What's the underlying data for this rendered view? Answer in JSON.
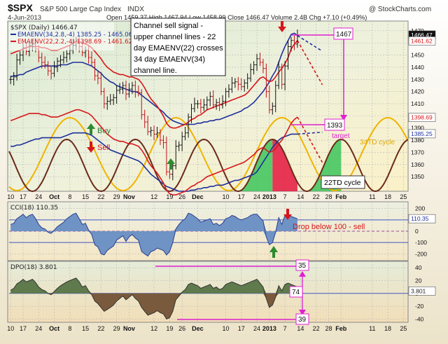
{
  "header": {
    "symbol": "$SPX",
    "name": "S&P 500 Large Cap Index",
    "exchange": "INDX",
    "copyright": "@ StockCharts.com",
    "date": "4-Jun-2013",
    "quote": "Open 1459.37  High 1467.94  Low 1458.99  Close 1466.47  Volume 2.4B  Chg +7.10 (+0.49%)"
  },
  "legend": {
    "price": "$SPX (Daily) 1466.47",
    "ema34": "EMAENV(34,2.8,-4) 1385.25 - 1465.06",
    "ema22": "EMAENV(22,2.2,-4) 1398.69 - 1461.62"
  },
  "annotations": {
    "channel_note": [
      "Channel sell signal -",
      "upper channel lines - 22",
      "day EMAENV(22) crosses",
      "34 day EMAENV(34)",
      "channel line."
    ],
    "buy": "Buy",
    "sell": "Sell",
    "target_1467": "1467",
    "target_1393": "1393",
    "target_label": "target",
    "cycle34": "34TD cycle",
    "cycle22": "22TD cycle",
    "cci_note": "Drop below 100 - sell",
    "dpo_35": "35",
    "dpo_74": "74",
    "dpo_39": "39"
  },
  "cci": {
    "label": "CCI(18) 110.35",
    "last": "110.35",
    "ticks": [
      "200",
      "100",
      "0",
      "-100",
      "-200"
    ]
  },
  "dpo": {
    "label": "DPO(18) 3.801",
    "last": "3.801",
    "ticks": [
      "40",
      "20",
      "0",
      "-20",
      "-40"
    ]
  },
  "x_axis_labels": [
    {
      "label": "10",
      "i": 0
    },
    {
      "label": "17",
      "i": 4
    },
    {
      "label": "24",
      "i": 9
    },
    {
      "label": "Oct",
      "i": 14
    },
    {
      "label": "8",
      "i": 19
    },
    {
      "label": "15",
      "i": 24
    },
    {
      "label": "22",
      "i": 29
    },
    {
      "label": "29",
      "i": 34
    },
    {
      "label": "Nov",
      "i": 38
    },
    {
      "label": "12",
      "i": 46
    },
    {
      "label": "19",
      "i": 51
    },
    {
      "label": "26",
      "i": 55
    },
    {
      "label": "Dec",
      "i": 60
    },
    {
      "label": "10",
      "i": 69
    },
    {
      "label": "17",
      "i": 74
    },
    {
      "label": "24",
      "i": 79
    },
    {
      "label": "2013",
      "i": 83
    },
    {
      "label": "7",
      "i": 88
    },
    {
      "label": "14",
      "i": 93
    },
    {
      "label": "22",
      "i": 98
    },
    {
      "label": "28",
      "i": 102
    },
    {
      "label": "Feb",
      "i": 106
    },
    {
      "label": "11",
      "i": 116
    },
    {
      "label": "18",
      "i": 121
    },
    {
      "label": "25",
      "i": 126
    }
  ],
  "chart_data": {
    "type": "line",
    "price_axis": {
      "ylim": [
        1338,
        1478
      ],
      "ticks": [
        1470,
        1460,
        1450,
        1440,
        1430,
        1420,
        1410,
        1400,
        1390,
        1380,
        1370,
        1360,
        1350
      ],
      "badges": [
        "1466.47",
        "1461.62",
        "1398.69",
        "1385.25"
      ]
    },
    "series": [
      {
        "name": "$SPX",
        "kind": "ohlc",
        "values": [
          1430,
          1432,
          1446,
          1450,
          1456,
          1453,
          1458,
          1459,
          1455,
          1448,
          1444,
          1442,
          1437,
          1435,
          1440,
          1445,
          1446,
          1448,
          1451,
          1454,
          1458,
          1462,
          1457,
          1452,
          1454,
          1448,
          1444,
          1433,
          1431,
          1420,
          1410,
          1412,
          1413,
          1415,
          1421,
          1422,
          1425,
          1418,
          1422,
          1425,
          1420,
          1419,
          1401,
          1395,
          1387,
          1388,
          1385,
          1386,
          1380,
          1378,
          1354,
          1352,
          1359,
          1375,
          1376,
          1383,
          1386,
          1399,
          1406,
          1410,
          1410,
          1407,
          1409,
          1413,
          1416,
          1409,
          1411,
          1409,
          1412,
          1420,
          1422,
          1427,
          1428,
          1426,
          1424,
          1427,
          1431,
          1438,
          1442,
          1447,
          1444,
          1439,
          1420,
          1405,
          1408,
          1425,
          1440,
          1426,
          1441,
          1457,
          1462,
          1459,
          1466
        ]
      },
      {
        "name": "EMAENV(34,2.8,-4)",
        "kind": "upper",
        "values": [
          1432,
          1433,
          1433,
          1434,
          1434,
          1436,
          1437,
          1438,
          1439,
          1440,
          1441,
          1441,
          1441,
          1441,
          1441,
          1441,
          1442,
          1442,
          1442,
          1443,
          1444,
          1444,
          1444,
          1444,
          1443,
          1442,
          1441,
          1439,
          1437,
          1435,
          1432,
          1430,
          1428,
          1427,
          1425,
          1424,
          1423,
          1422,
          1421,
          1420,
          1420,
          1419,
          1417,
          1415,
          1413,
          1411,
          1409,
          1407,
          1405,
          1403,
          1400,
          1398,
          1396,
          1395,
          1394,
          1393,
          1393,
          1393,
          1393,
          1393,
          1394,
          1394,
          1395,
          1395,
          1396,
          1396,
          1397,
          1397,
          1398,
          1399,
          1400,
          1401,
          1402,
          1403,
          1404,
          1406,
          1407,
          1409,
          1411,
          1414,
          1417,
          1420,
          1424,
          1428,
          1433,
          1437,
          1444,
          1451,
          1457,
          1462,
          1467,
          1468,
          1466
        ]
      },
      {
        "name": "EMAENV(34,2.8,-4)",
        "kind": "lower",
        "values": [
          1375,
          1375,
          1376,
          1376,
          1377,
          1378,
          1379,
          1380,
          1381,
          1381,
          1382,
          1382,
          1382,
          1382,
          1382,
          1382,
          1382,
          1383,
          1384,
          1385,
          1386,
          1386,
          1386,
          1386,
          1386,
          1385,
          1384,
          1382,
          1380,
          1378,
          1376,
          1374,
          1372,
          1371,
          1370,
          1369,
          1368,
          1367,
          1366,
          1365,
          1364,
          1363,
          1361,
          1358,
          1355,
          1352,
          1350,
          1348,
          1346,
          1344,
          1342,
          1341,
          1340,
          1339,
          1338,
          1338,
          1338,
          1338,
          1339,
          1339,
          1340,
          1340,
          1341,
          1341,
          1342,
          1342,
          1343,
          1343,
          1343,
          1344,
          1345,
          1346,
          1347,
          1347,
          1348,
          1349,
          1350,
          1351,
          1352,
          1354,
          1358,
          1362,
          1366,
          1370,
          1374,
          1377,
          1380,
          1382,
          1383,
          1384,
          1385,
          1385,
          1385
        ]
      },
      {
        "name": "EMAENV(22,2.2,-4)",
        "kind": "upper",
        "values": [
          1451,
          1452,
          1453,
          1454,
          1455,
          1456,
          1457,
          1457,
          1457,
          1457,
          1456,
          1456,
          1455,
          1454,
          1454,
          1454,
          1455,
          1456,
          1457,
          1458,
          1460,
          1461,
          1461,
          1460,
          1459,
          1458,
          1456,
          1453,
          1450,
          1447,
          1443,
          1440,
          1438,
          1436,
          1435,
          1434,
          1434,
          1433,
          1432,
          1432,
          1431,
          1430,
          1427,
          1423,
          1418,
          1414,
          1411,
          1408,
          1404,
          1400,
          1394,
          1391,
          1390,
          1390,
          1391,
          1392,
          1393,
          1395,
          1397,
          1398,
          1400,
          1401,
          1403,
          1405,
          1406,
          1407,
          1408,
          1409,
          1410,
          1411,
          1412,
          1413,
          1414,
          1415,
          1416,
          1417,
          1419,
          1422,
          1425,
          1428,
          1431,
          1432,
          1430,
          1428,
          1429,
          1432,
          1436,
          1439,
          1443,
          1448,
          1455,
          1459,
          1462
        ]
      },
      {
        "name": "EMAENV(22,2.2,-4)",
        "kind": "lower",
        "values": [
          1396,
          1397,
          1398,
          1399,
          1400,
          1401,
          1402,
          1402,
          1402,
          1402,
          1401,
          1401,
          1400,
          1399,
          1399,
          1399,
          1400,
          1401,
          1402,
          1403,
          1404,
          1405,
          1405,
          1404,
          1403,
          1402,
          1400,
          1397,
          1394,
          1391,
          1388,
          1385,
          1383,
          1381,
          1380,
          1379,
          1379,
          1378,
          1377,
          1377,
          1376,
          1375,
          1372,
          1368,
          1363,
          1359,
          1356,
          1353,
          1349,
          1345,
          1339,
          1336,
          1335,
          1335,
          1336,
          1337,
          1338,
          1340,
          1342,
          1343,
          1345,
          1346,
          1348,
          1350,
          1351,
          1352,
          1353,
          1354,
          1355,
          1356,
          1357,
          1358,
          1359,
          1360,
          1361,
          1362,
          1364,
          1366,
          1368,
          1371,
          1373,
          1374,
          1372,
          1370,
          1371,
          1373,
          1377,
          1380,
          1384,
          1389,
          1394,
          1397,
          1399
        ]
      },
      {
        "name": "34TD cycle",
        "kind": "cycle",
        "period": 34
      },
      {
        "name": "22TD cycle",
        "kind": "cycle",
        "period": 22
      },
      {
        "name": "CCI(18)",
        "kind": "oscillator",
        "ylim": [
          -260,
          260
        ],
        "values": [
          60,
          70,
          110,
          130,
          150,
          120,
          140,
          150,
          110,
          60,
          30,
          20,
          -10,
          -20,
          10,
          40,
          60,
          80,
          110,
          130,
          150,
          160,
          110,
          60,
          70,
          10,
          -30,
          -120,
          -140,
          -200,
          -210,
          -170,
          -150,
          -130,
          -80,
          -60,
          -40,
          -90,
          -50,
          -30,
          -60,
          -80,
          -180,
          -200,
          -220,
          -180,
          -170,
          -150,
          -160,
          -170,
          -210,
          -180,
          -100,
          20,
          60,
          90,
          110,
          160,
          150,
          130,
          110,
          80,
          90,
          100,
          110,
          60,
          70,
          50,
          70,
          110,
          120,
          140,
          130,
          110,
          100,
          110,
          120,
          140,
          150,
          150,
          120,
          90,
          -50,
          -120,
          -100,
          -10,
          120,
          60,
          140,
          140,
          130,
          120,
          110
        ]
      },
      {
        "name": "DPO(18)",
        "kind": "oscillator",
        "ylim": [
          -45,
          50
        ],
        "values": [
          5,
          8,
          15,
          18,
          22,
          18,
          20,
          22,
          17,
          10,
          6,
          4,
          0,
          -2,
          3,
          8,
          12,
          15,
          18,
          20,
          22,
          24,
          18,
          10,
          12,
          4,
          -2,
          -12,
          -16,
          -22,
          -28,
          -25,
          -22,
          -18,
          -12,
          -8,
          -4,
          -10,
          -6,
          -2,
          -8,
          -12,
          -22,
          -28,
          -34,
          -32,
          -30,
          -27,
          -30,
          -32,
          -40,
          -38,
          -28,
          -10,
          -4,
          2,
          6,
          14,
          16,
          14,
          12,
          8,
          10,
          12,
          14,
          8,
          10,
          6,
          8,
          14,
          16,
          18,
          16,
          14,
          12,
          14,
          16,
          18,
          20,
          22,
          16,
          10,
          -8,
          -22,
          -18,
          -6,
          12,
          4,
          14,
          16,
          14,
          12,
          10
        ]
      }
    ]
  }
}
